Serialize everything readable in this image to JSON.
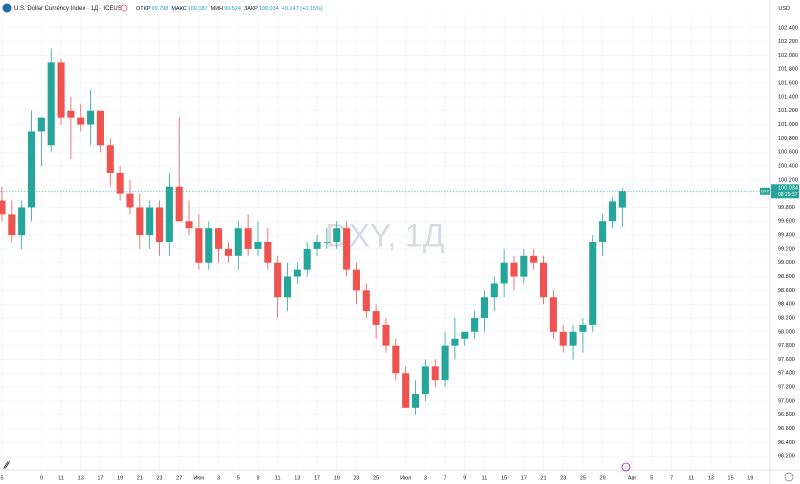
{
  "chart_data": {
    "type": "candlestick",
    "title": "U.S. Dollar Currency Index · 1Д · ICEUS",
    "ohlc_labels": [
      "ОТКР",
      "МАКС",
      "МИН",
      "ЗАКР"
    ],
    "ohlc_values": [
      99.798,
      100.087,
      99.524,
      100.034
    ],
    "change": "+0.147 (+0.15%)",
    "watermark": "DXY, 1Д",
    "currency": "USD",
    "symbol_tag": "DXY",
    "price_label": "100.034",
    "countdown": "08:25:37",
    "up_color": "#26a69a",
    "down_color": "#ef5350",
    "grid": true,
    "open": [
      99.9,
      99.7,
      99.4,
      99.8,
      100.9,
      100.7,
      101.9,
      101.2,
      101.1,
      101.0,
      101.2,
      100.7,
      100.3,
      100.0,
      99.8,
      99.4,
      99.8,
      99.3,
      100.1,
      99.6,
      99.5,
      99.0,
      99.5,
      99.2,
      99.1,
      99.5,
      99.2,
      99.3,
      99.0,
      98.5,
      98.8,
      98.9,
      99.2,
      99.3,
      99.3,
      99.5,
      98.9,
      98.6,
      98.3,
      98.1,
      97.8,
      97.4,
      96.9,
      97.1,
      97.5,
      97.3,
      97.8,
      97.9,
      98.0,
      98.2,
      98.5,
      98.7,
      99.0,
      98.8,
      99.1,
      99.0,
      98.5,
      98.0,
      97.8,
      98.0,
      98.1,
      99.3,
      99.6,
      99.798
    ],
    "high": [
      100.1,
      99.9,
      99.9,
      101.2,
      101.1,
      102.1,
      101.95,
      101.4,
      101.3,
      101.5,
      101.2,
      100.8,
      100.4,
      100.2,
      100.0,
      99.9,
      99.9,
      100.3,
      101.1,
      99.9,
      99.7,
      99.6,
      99.5,
      99.3,
      99.6,
      99.7,
      99.6,
      99.5,
      99.1,
      99.0,
      99.0,
      99.3,
      99.4,
      99.5,
      99.6,
      99.6,
      99.0,
      98.7,
      98.4,
      98.2,
      97.9,
      97.5,
      97.3,
      97.6,
      97.6,
      98.0,
      98.2,
      98.0,
      98.3,
      98.6,
      98.8,
      99.2,
      99.1,
      99.2,
      99.2,
      99.1,
      98.6,
      98.1,
      98.1,
      98.2,
      99.4,
      99.7,
      99.95,
      100.087
    ],
    "low": [
      99.6,
      99.3,
      99.2,
      99.6,
      100.4,
      100.6,
      101.0,
      100.5,
      100.9,
      100.7,
      100.6,
      100.1,
      99.9,
      99.7,
      99.2,
      99.2,
      99.1,
      99.1,
      99.6,
      99.4,
      98.9,
      98.9,
      99.0,
      99.0,
      98.9,
      99.1,
      99.1,
      98.9,
      98.2,
      98.3,
      98.7,
      98.8,
      99.1,
      99.2,
      99.2,
      98.8,
      98.4,
      98.2,
      97.9,
      97.7,
      97.3,
      96.9,
      96.8,
      97.0,
      97.2,
      97.2,
      97.6,
      97.8,
      97.9,
      98.0,
      98.3,
      98.5,
      98.6,
      98.7,
      98.9,
      98.4,
      97.9,
      97.7,
      97.6,
      97.7,
      98.0,
      99.1,
      99.5,
      99.524
    ],
    "close": [
      99.7,
      99.4,
      99.8,
      100.9,
      101.1,
      101.9,
      101.1,
      101.1,
      101.0,
      101.2,
      100.7,
      100.3,
      100.0,
      99.8,
      99.4,
      99.8,
      99.3,
      100.1,
      99.6,
      99.5,
      99.0,
      99.5,
      99.2,
      99.1,
      99.5,
      99.2,
      99.3,
      99.0,
      98.5,
      98.8,
      98.9,
      99.2,
      99.3,
      99.3,
      99.5,
      98.9,
      98.6,
      98.3,
      98.1,
      97.8,
      97.4,
      96.9,
      97.1,
      97.5,
      97.3,
      97.8,
      97.9,
      98.0,
      98.2,
      98.5,
      98.7,
      99.0,
      98.8,
      99.1,
      99.0,
      98.5,
      98.0,
      97.8,
      98.0,
      98.1,
      99.3,
      99.6,
      99.887,
      100.034
    ],
    "xlim": [
      -0.2,
      78
    ],
    "xticks": [
      {
        "value": 0,
        "label": "5"
      },
      {
        "value": 4,
        "label": "9"
      },
      {
        "value": 6,
        "label": "11"
      },
      {
        "value": 8,
        "label": "13"
      },
      {
        "value": 10,
        "label": "17"
      },
      {
        "value": 12,
        "label": "19"
      },
      {
        "value": 14,
        "label": "21"
      },
      {
        "value": 16,
        "label": "23"
      },
      {
        "value": 18,
        "label": "27"
      },
      {
        "value": 20,
        "label": "Июн"
      },
      {
        "value": 22,
        "label": "3"
      },
      {
        "value": 24,
        "label": "5"
      },
      {
        "value": 26,
        "label": "9"
      },
      {
        "value": 28,
        "label": "11"
      },
      {
        "value": 30,
        "label": "13"
      },
      {
        "value": 32,
        "label": "17"
      },
      {
        "value": 34,
        "label": "19"
      },
      {
        "value": 36,
        "label": "23"
      },
      {
        "value": 38,
        "label": "25"
      },
      {
        "value": 41,
        "label": "Июл"
      },
      {
        "value": 43,
        "label": "3"
      },
      {
        "value": 45,
        "label": "7"
      },
      {
        "value": 47,
        "label": "9"
      },
      {
        "value": 49,
        "label": "11"
      },
      {
        "value": 51,
        "label": "15"
      },
      {
        "value": 53,
        "label": "17"
      },
      {
        "value": 55,
        "label": "21"
      },
      {
        "value": 57,
        "label": "23"
      },
      {
        "value": 59,
        "label": "25"
      },
      {
        "value": 61,
        "label": "29"
      },
      {
        "value": 64,
        "label": "Авг"
      },
      {
        "value": 66,
        "label": "5"
      },
      {
        "value": 68,
        "label": "7"
      },
      {
        "value": 70,
        "label": "11"
      },
      {
        "value": 72,
        "label": "13"
      },
      {
        "value": 74,
        "label": "15"
      },
      {
        "value": 76,
        "label": "19"
      }
    ],
    "ylim": [
      96.0,
      102.6
    ],
    "yticks": [
      {
        "value": 96.2,
        "label": "96.200"
      },
      {
        "value": 96.4,
        "label": "96.400"
      },
      {
        "value": 96.6,
        "label": "96.600"
      },
      {
        "value": 96.8,
        "label": "96.800"
      },
      {
        "value": 97.0,
        "label": "97.000"
      },
      {
        "value": 97.2,
        "label": "97.200"
      },
      {
        "value": 97.4,
        "label": "97.400"
      },
      {
        "value": 97.6,
        "label": "97.600"
      },
      {
        "value": 97.8,
        "label": "97.800"
      },
      {
        "value": 98.0,
        "label": "98.000"
      },
      {
        "value": 98.2,
        "label": "98.200"
      },
      {
        "value": 98.4,
        "label": "98.400"
      },
      {
        "value": 98.6,
        "label": "98.600"
      },
      {
        "value": 98.8,
        "label": "98.800"
      },
      {
        "value": 99.0,
        "label": "99.000"
      },
      {
        "value": 99.2,
        "label": "99.200"
      },
      {
        "value": 99.4,
        "label": "99.400"
      },
      {
        "value": 99.6,
        "label": "99.600"
      },
      {
        "value": 99.8,
        "label": "99.800"
      },
      {
        "value": 100.0,
        "label": "100.000"
      },
      {
        "value": 100.2,
        "label": "100.200"
      },
      {
        "value": 100.4,
        "label": "100.400"
      },
      {
        "value": 100.6,
        "label": "100.600"
      },
      {
        "value": 100.8,
        "label": "100.800"
      },
      {
        "value": 101.0,
        "label": "101.000"
      },
      {
        "value": 101.2,
        "label": "101.200"
      },
      {
        "value": 101.4,
        "label": "101.400"
      },
      {
        "value": 101.6,
        "label": "101.600"
      },
      {
        "value": 101.8,
        "label": "101.800"
      },
      {
        "value": 102.0,
        "label": "102.000"
      },
      {
        "value": 102.2,
        "label": "102.200"
      },
      {
        "value": 102.4,
        "label": "102.400"
      }
    ]
  }
}
